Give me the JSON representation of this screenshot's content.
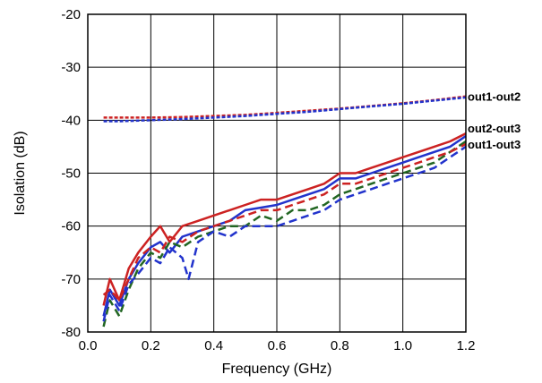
{
  "chart_data": {
    "type": "line",
    "xlabel": "Frequency (GHz)",
    "ylabel": "Isolation (dB)",
    "xlim": [
      0.0,
      1.2
    ],
    "ylim": [
      -80,
      -20
    ],
    "x_ticks": [
      0.0,
      0.2,
      0.4,
      0.6,
      0.8,
      1.0,
      1.2
    ],
    "x_tick_labels": [
      "0.0",
      "0.2",
      "0.4",
      "0.6",
      "0.8",
      "1.0",
      "1.2"
    ],
    "y_ticks": [
      -80,
      -70,
      -60,
      -50,
      -40,
      -30,
      -20
    ],
    "y_tick_labels": [
      "-80",
      "-70",
      "-60",
      "-50",
      "-40",
      "-30",
      "-20"
    ],
    "grid": true,
    "annotations": [
      {
        "text": "out1-out2",
        "x": 1.2,
        "y": -35.5
      },
      {
        "text": "out2-out3",
        "x": 1.2,
        "y": -41.5
      },
      {
        "text": "out1-out3",
        "x": 1.2,
        "y": -44.5
      }
    ],
    "series": [
      {
        "color": "#cc2222",
        "style": "dashed",
        "x": [
          0.05,
          0.1,
          0.2,
          0.3,
          0.4,
          0.5,
          0.6,
          0.7,
          0.8,
          0.9,
          1.0,
          1.1,
          1.2
        ],
        "y": [
          -39.5,
          -39.5,
          -39.5,
          -39.4,
          -39.2,
          -39.0,
          -38.6,
          -38.2,
          -37.8,
          -37.3,
          -36.8,
          -36.2,
          -35.5
        ]
      },
      {
        "color": "#2233cc",
        "style": "dashed",
        "x": [
          0.05,
          0.1,
          0.2,
          0.3,
          0.4,
          0.5,
          0.6,
          0.7,
          0.8,
          0.9,
          1.0,
          1.1,
          1.2
        ],
        "y": [
          -40.2,
          -40.2,
          -40.0,
          -39.8,
          -39.5,
          -39.2,
          -38.8,
          -38.4,
          -37.9,
          -37.4,
          -36.9,
          -36.3,
          -35.7
        ]
      },
      {
        "color": "#cc2222",
        "style": "solid",
        "x": [
          0.05,
          0.07,
          0.1,
          0.13,
          0.16,
          0.2,
          0.23,
          0.26,
          0.3,
          0.35,
          0.4,
          0.45,
          0.5,
          0.55,
          0.6,
          0.65,
          0.7,
          0.75,
          0.8,
          0.85,
          0.9,
          0.95,
          1.0,
          1.05,
          1.1,
          1.15,
          1.2
        ],
        "y": [
          -75,
          -70,
          -74,
          -68,
          -65,
          -62,
          -60,
          -63,
          -60,
          -59,
          -58,
          -57,
          -56,
          -55,
          -55,
          -54,
          -53,
          -52,
          -50,
          -50,
          -49,
          -48,
          -47,
          -46,
          -45,
          -44,
          -42.5
        ]
      },
      {
        "color": "#2233cc",
        "style": "solid",
        "x": [
          0.05,
          0.07,
          0.1,
          0.13,
          0.16,
          0.2,
          0.23,
          0.26,
          0.3,
          0.35,
          0.4,
          0.45,
          0.5,
          0.55,
          0.6,
          0.65,
          0.7,
          0.75,
          0.8,
          0.85,
          0.9,
          0.95,
          1.0,
          1.05,
          1.1,
          1.15,
          1.2
        ],
        "y": [
          -77,
          -72,
          -75,
          -70,
          -67,
          -64,
          -63,
          -65,
          -62,
          -61,
          -60,
          -59,
          -57,
          -56.5,
          -56,
          -55,
          -54,
          -53,
          -51,
          -51,
          -50,
          -49,
          -48,
          -47,
          -46,
          -45,
          -43
        ]
      },
      {
        "color": "#226622",
        "style": "dashed",
        "x": [
          0.05,
          0.07,
          0.1,
          0.13,
          0.16,
          0.2,
          0.23,
          0.26,
          0.3,
          0.35,
          0.4,
          0.45,
          0.5,
          0.55,
          0.6,
          0.65,
          0.7,
          0.75,
          0.8,
          0.85,
          0.9,
          0.95,
          1.0,
          1.05,
          1.1,
          1.15,
          1.2
        ],
        "y": [
          -79,
          -74,
          -77,
          -72,
          -68,
          -65,
          -66,
          -63,
          -64,
          -62,
          -61,
          -60,
          -60,
          -58,
          -59,
          -57,
          -57,
          -56,
          -54,
          -53,
          -52,
          -51,
          -50,
          -49,
          -48,
          -46,
          -44
        ]
      },
      {
        "color": "#cc2222",
        "style": "dashed",
        "x": [
          0.05,
          0.07,
          0.1,
          0.13,
          0.16,
          0.2,
          0.23,
          0.26,
          0.3,
          0.35,
          0.4,
          0.45,
          0.5,
          0.55,
          0.6,
          0.65,
          0.7,
          0.75,
          0.8,
          0.85,
          0.9,
          0.95,
          1.0,
          1.05,
          1.1,
          1.15,
          1.2
        ],
        "y": [
          -73,
          -72,
          -74,
          -70,
          -66,
          -64,
          -65,
          -62,
          -63,
          -61,
          -60,
          -59,
          -58,
          -57,
          -57,
          -56,
          -55,
          -54,
          -52,
          -52,
          -51,
          -50,
          -49,
          -48,
          -47,
          -46,
          -44.5
        ]
      },
      {
        "color": "#2233cc",
        "style": "dashed",
        "x": [
          0.05,
          0.07,
          0.1,
          0.13,
          0.16,
          0.2,
          0.23,
          0.26,
          0.3,
          0.32,
          0.35,
          0.4,
          0.45,
          0.5,
          0.55,
          0.6,
          0.65,
          0.7,
          0.75,
          0.8,
          0.85,
          0.9,
          0.95,
          1.0,
          1.05,
          1.1,
          1.15,
          1.2
        ],
        "y": [
          -78,
          -73,
          -76,
          -71,
          -69,
          -66,
          -67,
          -64,
          -66,
          -70,
          -63,
          -61,
          -62,
          -60,
          -60,
          -60,
          -59,
          -58,
          -57,
          -55,
          -54,
          -53,
          -52,
          -51,
          -50,
          -49,
          -47,
          -45
        ]
      }
    ]
  }
}
